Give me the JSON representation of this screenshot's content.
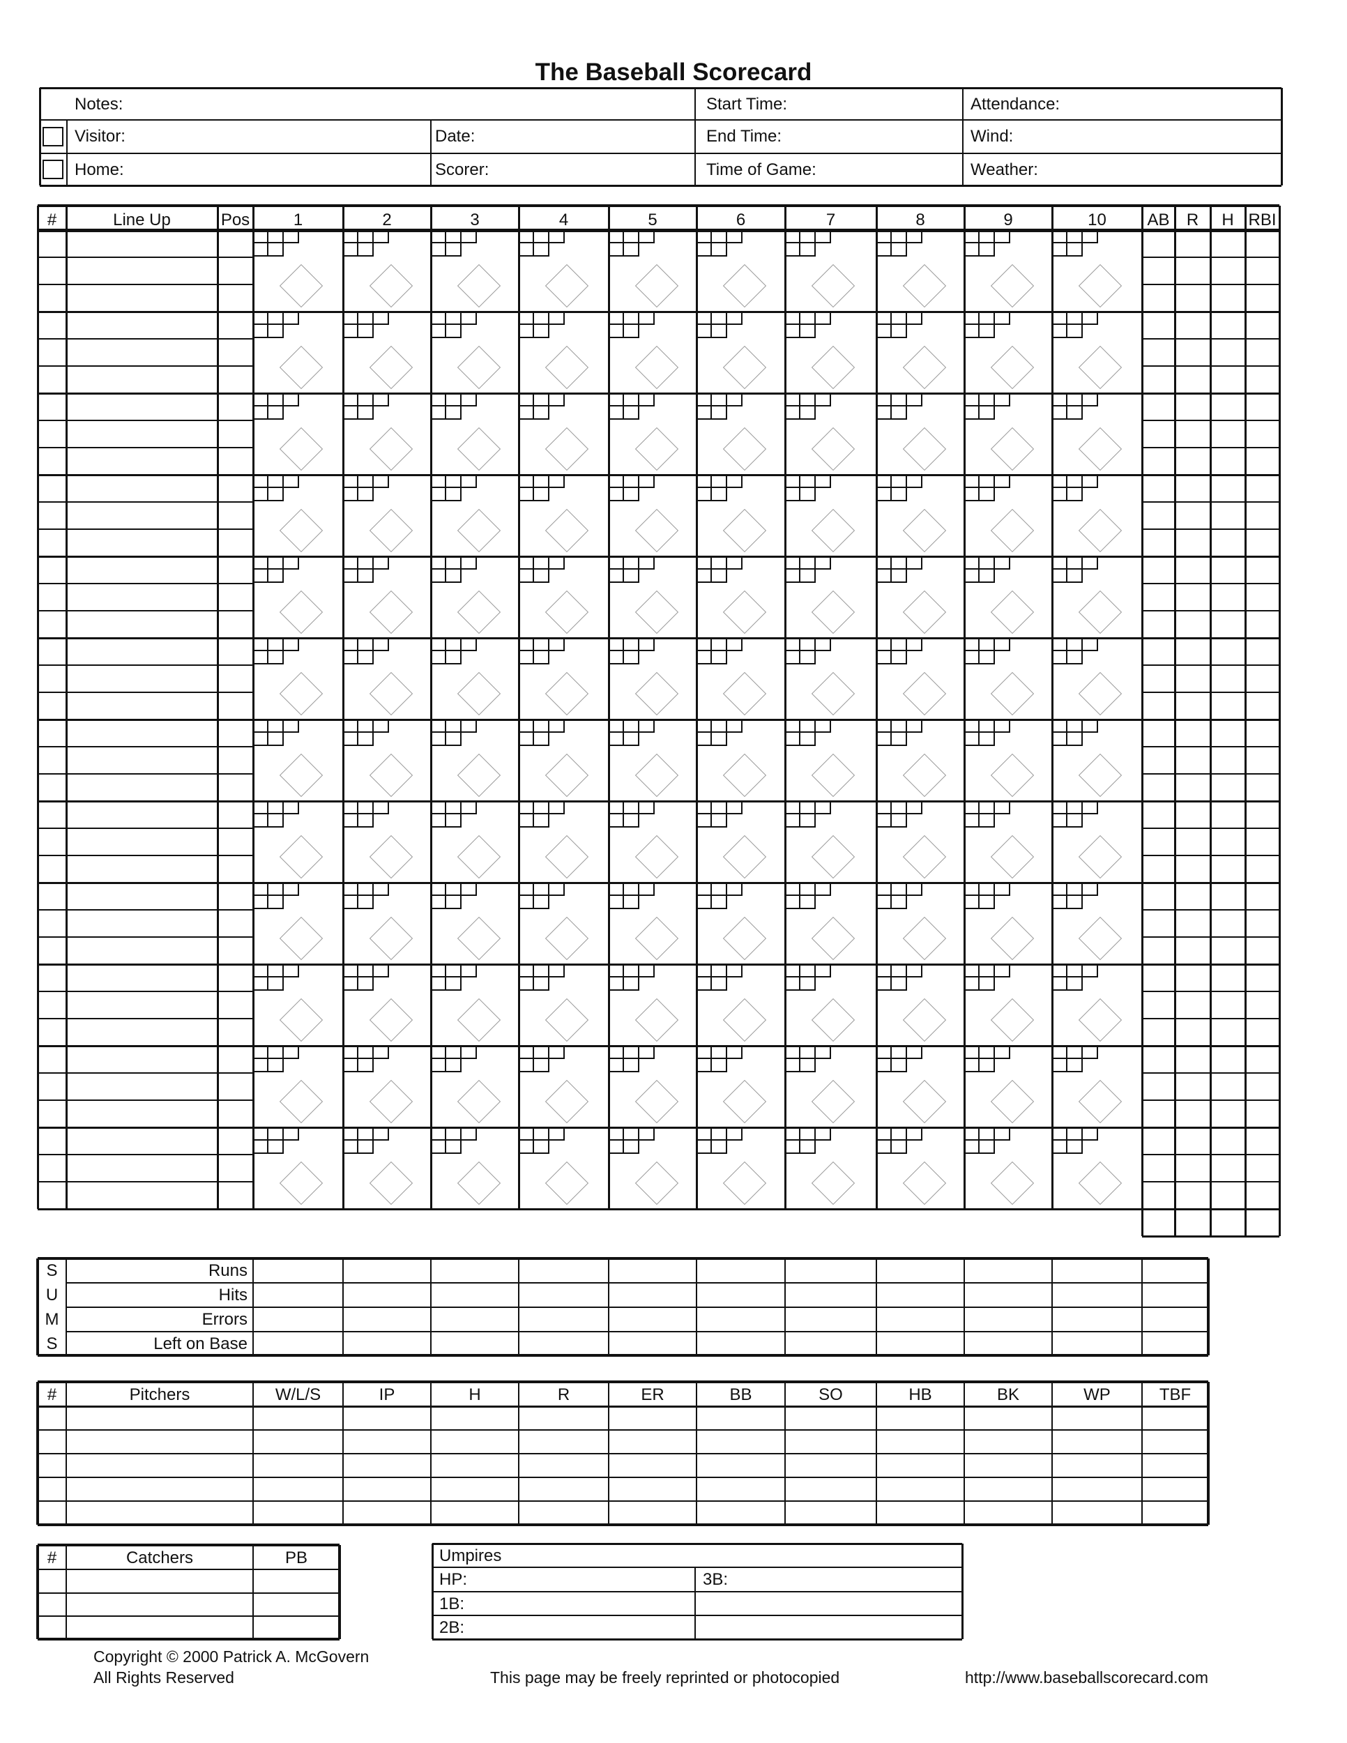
{
  "title": "The Baseball Scorecard",
  "info": {
    "notes": "Notes:",
    "start_time": "Start Time:",
    "attendance": "Attendance:",
    "visitor": "Visitor:",
    "date": "Date:",
    "end_time": "End Time:",
    "wind": "Wind:",
    "home": "Home:",
    "scorer": "Scorer:",
    "time_of_game": "Time of Game:",
    "weather": "Weather:"
  },
  "lineup": {
    "headers": [
      "#",
      "Line Up",
      "Pos",
      "1",
      "2",
      "3",
      "4",
      "5",
      "6",
      "7",
      "8",
      "9",
      "10",
      "AB",
      "R",
      "H",
      "RBI"
    ],
    "batter_rows": 12,
    "sub_rows": 3
  },
  "sums": {
    "letters": [
      "S",
      "U",
      "M",
      "S"
    ],
    "rows": [
      "Runs",
      "Hits",
      "Errors",
      "Left on Base"
    ]
  },
  "pitchers": {
    "headers": [
      "#",
      "Pitchers",
      "W/L/S",
      "IP",
      "H",
      "R",
      "ER",
      "BB",
      "SO",
      "HB",
      "BK",
      "WP",
      "TBF"
    ],
    "rows": 5
  },
  "catchers": {
    "headers": [
      "#",
      "Catchers",
      "PB"
    ],
    "rows": 3
  },
  "umpires": {
    "title": "Umpires",
    "hp": "HP:",
    "third": "3B:",
    "first": "1B:",
    "second": "2B:"
  },
  "footer": {
    "copyright": "Copyright © 2000 Patrick A. McGovern",
    "rights": "All Rights Reserved",
    "reprint": "This page may be freely reprinted or photocopied",
    "url": "http://www.baseballscorecard.com"
  },
  "colors": {
    "ink": "#111111",
    "diamond": "#999999"
  }
}
